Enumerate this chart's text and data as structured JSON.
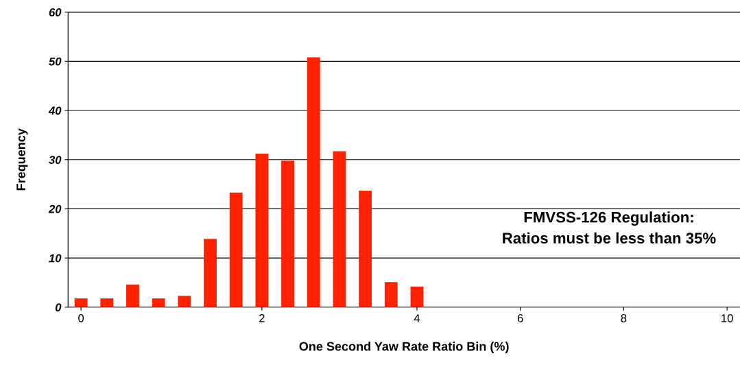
{
  "chart_data": {
    "type": "bar",
    "xlabel": "One Second Yaw Rate Ratio Bin (%)",
    "ylabel": "Frequency",
    "categories": [
      "0",
      null,
      null,
      null,
      null,
      null,
      null,
      "2",
      null,
      null,
      null,
      null,
      null,
      "4",
      null,
      null,
      null,
      "6",
      null,
      null,
      null,
      "8",
      null,
      null,
      null,
      "10"
    ],
    "values": [
      1.8,
      1.8,
      4.6,
      1.8,
      2.3,
      13.9,
      23.3,
      31.2,
      29.8,
      50.8,
      31.7,
      23.7,
      5.1,
      4.2,
      0,
      0,
      0,
      0,
      0,
      0,
      0,
      0,
      0,
      0,
      0,
      0
    ],
    "color": "#ff2200",
    "ylim": [
      0,
      60
    ],
    "yticks": [
      0,
      10,
      20,
      30,
      40,
      50,
      60
    ],
    "grid": "y",
    "annotations": [
      "FMVSS-126 Regulation:\nRatios must be less than 35%"
    ]
  }
}
